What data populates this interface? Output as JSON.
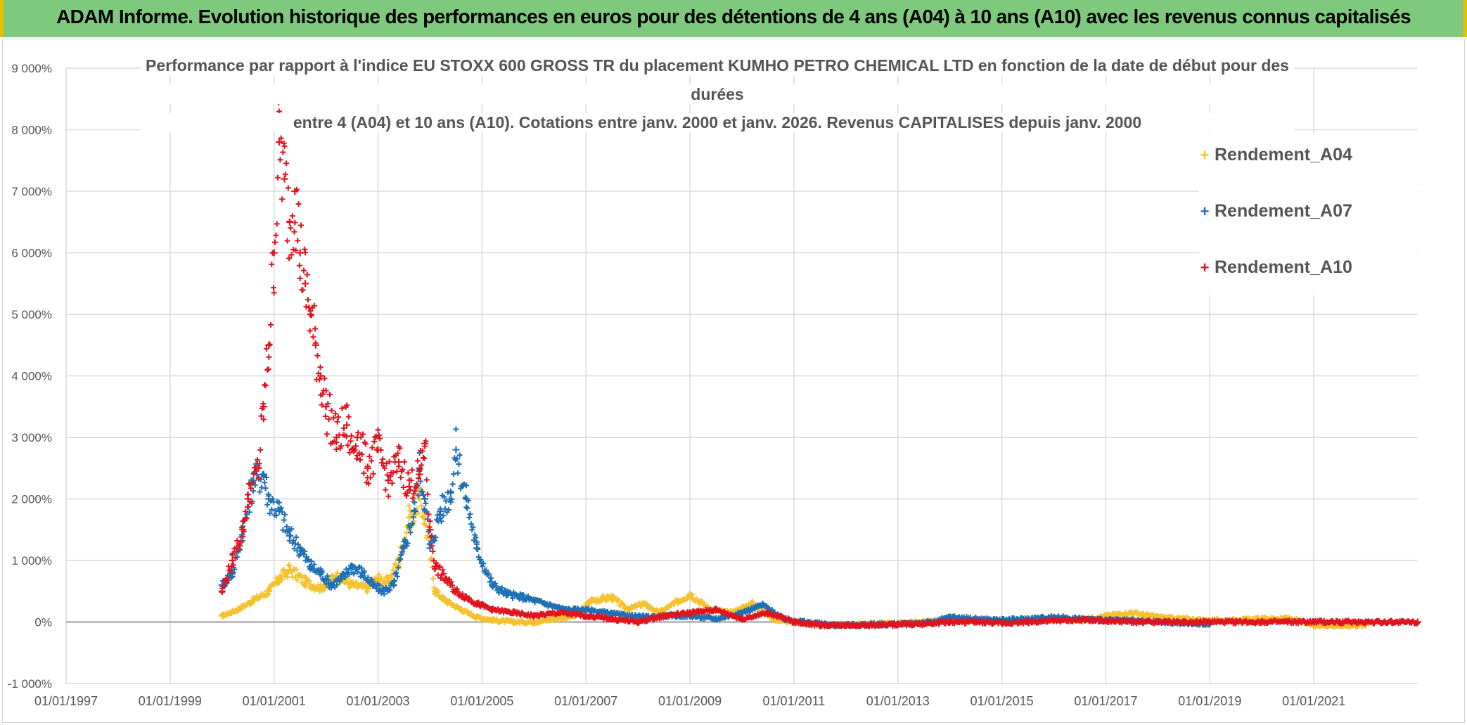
{
  "header": {
    "title": "ADAM Informe. Evolution historique des performances en euros pour des détentions de 4 ans (A04) à 10 ans (A10) avec les revenus connus capitalisés"
  },
  "chart_data": {
    "type": "scatter",
    "title_lines": [
      "Performance par rapport à l'indice EU STOXX 600 GROSS TR  du placement KUMHO PETRO CHEMICAL LTD en fonction de la date de début pour des",
      "durées",
      "entre 4 (A04) et 10 ans (A10). Cotations entre janv. 2000 et janv. 2026. Revenus CAPITALISES depuis janv. 2000"
    ],
    "xlabel": "",
    "ylabel": "",
    "xlim": [
      1997.0,
      2023.0
    ],
    "ylim": [
      -1000,
      9000
    ],
    "x_ticks": [
      1997,
      1999,
      2001,
      2003,
      2005,
      2007,
      2009,
      2011,
      2013,
      2015,
      2017,
      2019,
      2021
    ],
    "x_tick_labels": [
      "01/01/1997",
      "01/01/1999",
      "01/01/2001",
      "01/01/2003",
      "01/01/2005",
      "01/01/2007",
      "01/01/2009",
      "01/01/2011",
      "01/01/2013",
      "01/01/2015",
      "01/01/2017",
      "01/01/2019",
      "01/01/2021"
    ],
    "y_ticks": [
      -1000,
      0,
      1000,
      2000,
      3000,
      4000,
      5000,
      6000,
      7000,
      8000,
      9000
    ],
    "y_tick_labels": [
      "-1 000%",
      "0%",
      "1 000%",
      "2 000%",
      "3 000%",
      "4 000%",
      "5 000%",
      "6 000%",
      "7 000%",
      "8 000%",
      "9 000%"
    ],
    "grid": true,
    "legend_position": "top-right",
    "marker": "+",
    "series": [
      {
        "name": "Rendement_A04",
        "color": "#f5c12e",
        "x": [
          2000.0,
          2000.3,
          2000.6,
          2000.9,
          2001.1,
          2001.3,
          2001.6,
          2001.9,
          2002.2,
          2002.5,
          2002.8,
          2003.0,
          2003.2,
          2003.4,
          2003.6,
          2003.8,
          2003.9,
          2004.1,
          2004.3,
          2004.6,
          2004.9,
          2005.2,
          2005.6,
          2006.0,
          2006.4,
          2006.8,
          2007.1,
          2007.5,
          2007.8,
          2008.1,
          2008.4,
          2008.7,
          2009.0,
          2009.4,
          2009.8,
          2010.2,
          2010.6,
          2011.0,
          2011.5,
          2012.0,
          2012.5,
          2013.0,
          2013.5,
          2014.0,
          2014.5,
          2015.0,
          2015.5,
          2016.0,
          2016.5,
          2017.0,
          2017.5,
          2018.0,
          2018.5,
          2019.0,
          2019.5,
          2020.0,
          2020.5,
          2021.0,
          2021.5,
          2022.0
        ],
        "y": [
          100,
          200,
          350,
          500,
          700,
          850,
          650,
          550,
          750,
          600,
          550,
          700,
          650,
          1000,
          1700,
          2000,
          1700,
          500,
          350,
          200,
          80,
          30,
          0,
          0,
          50,
          100,
          350,
          400,
          200,
          300,
          150,
          300,
          450,
          200,
          150,
          300,
          50,
          0,
          -50,
          -50,
          -30,
          -20,
          0,
          30,
          20,
          10,
          20,
          50,
          30,
          100,
          150,
          80,
          50,
          20,
          30,
          50,
          60,
          -50,
          -60,
          -50
        ]
      },
      {
        "name": "Rendement_A07",
        "color": "#1f6fb5",
        "x": [
          2000.0,
          2000.2,
          2000.4,
          2000.6,
          2000.8,
          2000.9,
          2001.1,
          2001.3,
          2001.5,
          2001.7,
          2001.9,
          2002.1,
          2002.3,
          2002.5,
          2002.7,
          2002.9,
          2003.1,
          2003.3,
          2003.5,
          2003.7,
          2003.8,
          2003.9,
          2004.0,
          2004.2,
          2004.4,
          2004.5,
          2004.7,
          2004.9,
          2005.2,
          2005.5,
          2005.8,
          2006.2,
          2006.6,
          2007.0,
          2007.4,
          2007.8,
          2008.2,
          2008.6,
          2009.0,
          2009.5,
          2010.0,
          2010.4,
          2010.8,
          2011.2,
          2011.7,
          2012.2,
          2012.7,
          2013.2,
          2013.7,
          2014.0,
          2014.5,
          2015.0,
          2015.5,
          2016.0,
          2016.5,
          2017.0,
          2017.5,
          2018.0,
          2018.5,
          2019.0
        ],
        "y": [
          600,
          800,
          1500,
          2300,
          2400,
          2000,
          1800,
          1400,
          1200,
          900,
          800,
          600,
          700,
          900,
          800,
          600,
          500,
          600,
          1200,
          1800,
          2500,
          2000,
          1200,
          1800,
          2100,
          2800,
          2000,
          1200,
          600,
          450,
          400,
          300,
          200,
          200,
          150,
          100,
          80,
          100,
          100,
          50,
          150,
          280,
          50,
          0,
          -50,
          -50,
          -40,
          -30,
          0,
          80,
          50,
          30,
          50,
          80,
          50,
          30,
          20,
          0,
          -20,
          -30
        ]
      },
      {
        "name": "Rendement_A10",
        "color": "#e0141e",
        "x": [
          2000.0,
          2000.2,
          2000.4,
          2000.5,
          2000.7,
          2000.8,
          2000.9,
          2001.0,
          2001.1,
          2001.2,
          2001.3,
          2001.4,
          2001.5,
          2001.6,
          2001.7,
          2001.8,
          2001.9,
          2002.0,
          2002.2,
          2002.4,
          2002.5,
          2002.6,
          2002.8,
          2003.0,
          2003.2,
          2003.4,
          2003.6,
          2003.8,
          2003.9,
          2004.0,
          2004.1,
          2004.3,
          2004.5,
          2004.7,
          2004.9,
          2005.2,
          2005.6,
          2006.0,
          2006.5,
          2007.0,
          2007.5,
          2008.0,
          2008.5,
          2009.0,
          2009.5,
          2010.0,
          2010.5,
          2011.0,
          2011.5,
          2012.0,
          2012.5,
          2013.0,
          2013.5,
          2014.0,
          2014.5,
          2015.0,
          2015.5,
          2016.0,
          2016.5,
          2017.0,
          2017.5,
          2018.0,
          2018.5,
          2019.0,
          2019.5,
          2020.0,
          2020.5,
          2021.0,
          2021.5,
          2022.0,
          2022.5,
          2023.0
        ],
        "y": [
          500,
          1000,
          1500,
          2000,
          2500,
          3500,
          4500,
          6000,
          7800,
          7200,
          6500,
          7000,
          6000,
          5500,
          5000,
          4500,
          4000,
          3500,
          3000,
          3200,
          2800,
          3000,
          2500,
          2800,
          2300,
          2600,
          2200,
          2400,
          2900,
          1500,
          900,
          700,
          500,
          400,
          300,
          200,
          150,
          100,
          150,
          100,
          50,
          0,
          100,
          150,
          200,
          50,
          150,
          0,
          -50,
          -50,
          -50,
          -40,
          -30,
          0,
          0,
          -20,
          0,
          20,
          30,
          20,
          0,
          0,
          0,
          0,
          0,
          0,
          0,
          0,
          0,
          0,
          0,
          0
        ]
      }
    ]
  }
}
